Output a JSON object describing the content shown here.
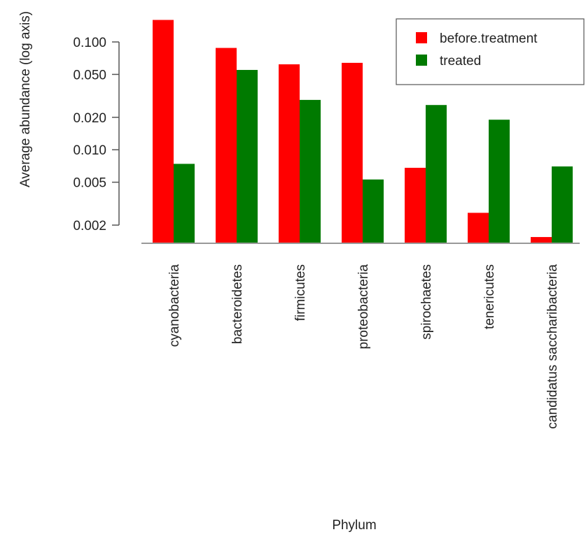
{
  "chart_data": {
    "type": "bar",
    "categories": [
      "cyanobacteria",
      "bacteroidetes",
      "firmicutes",
      "proteobacteria",
      "spirochaetes",
      "tenericutes",
      "candidatus saccharibacteria"
    ],
    "series": [
      {
        "name": "before.treatment",
        "color": "#ff0000",
        "values": [
          0.16,
          0.088,
          0.062,
          0.064,
          0.0068,
          0.0026,
          0.00155
        ]
      },
      {
        "name": "treated",
        "color": "#007a00",
        "values": [
          0.0074,
          0.055,
          0.029,
          0.0053,
          0.026,
          0.019,
          0.007
        ]
      }
    ],
    "xlabel": "Phylum",
    "ylabel": "Average abundance  (log axis)",
    "yscale": "log",
    "ylim": [
      0.0015,
      0.17
    ],
    "yticks": [
      0.002,
      0.005,
      0.01,
      0.02,
      0.05,
      0.1
    ],
    "ytick_labels": [
      "0.002",
      "0.005",
      "0.010",
      "0.020",
      "0.050",
      "0.100"
    ],
    "legend_position": "top-right",
    "grid": false
  }
}
